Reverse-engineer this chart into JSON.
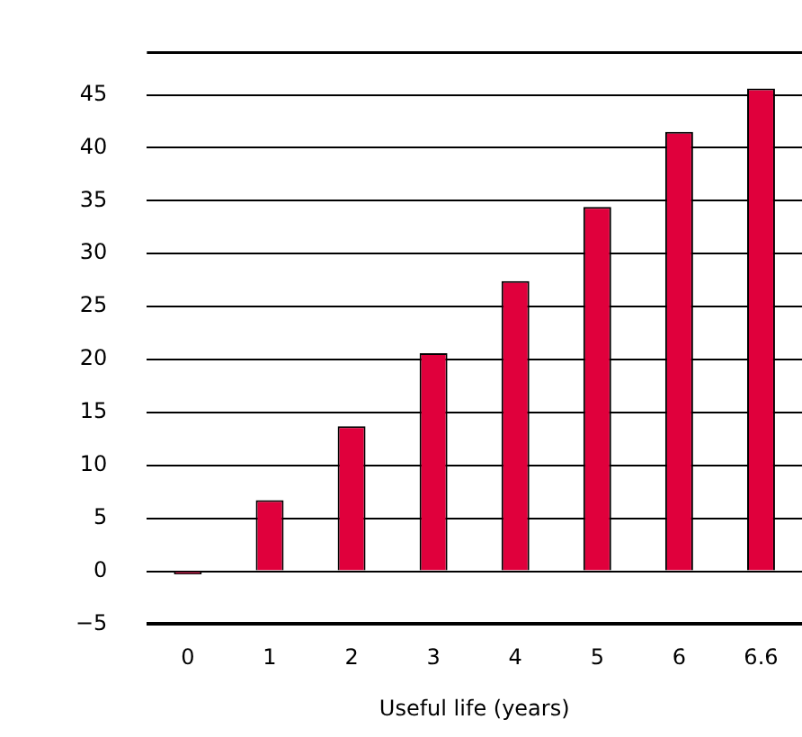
{
  "chart_data": {
    "type": "bar",
    "xlabel": "Useful life (years)",
    "categories": [
      "0",
      "1",
      "2",
      "3",
      "4",
      "5",
      "6",
      "6.6"
    ],
    "values": [
      -0.3,
      6.7,
      13.7,
      20.6,
      27.4,
      34.4,
      41.5,
      45.6
    ],
    "color": "#e0003c",
    "ylim": [
      -5,
      49
    ],
    "yticks": [
      {
        "value": -5,
        "label": "−5"
      },
      0,
      5,
      10,
      15,
      20,
      25,
      30,
      35,
      40,
      45
    ],
    "grid": "y",
    "legend": false
  }
}
